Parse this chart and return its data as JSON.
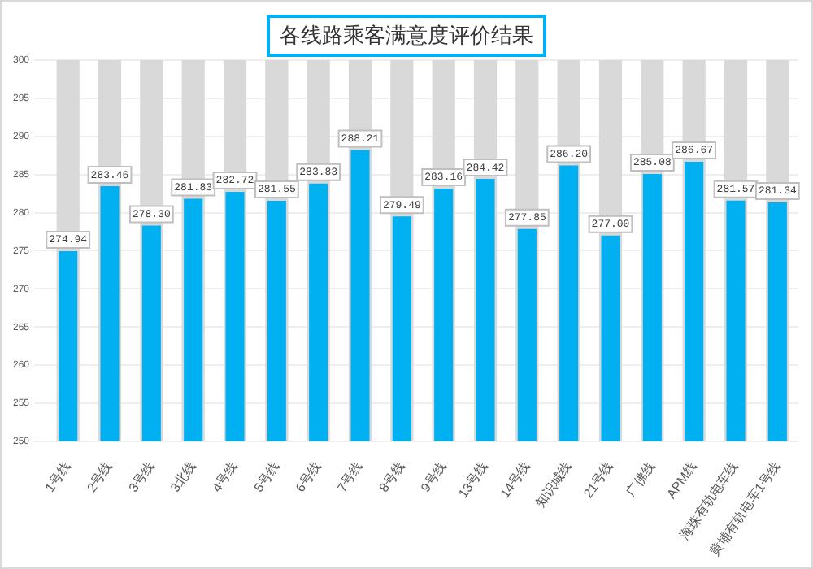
{
  "chart_data": {
    "type": "bar",
    "title": "各线路乘客满意度评价结果",
    "categories": [
      "1号线",
      "2号线",
      "3号线",
      "3北线",
      "4号线",
      "5号线",
      "6号线",
      "7号线",
      "8号线",
      "9号线",
      "13号线",
      "14号线",
      "知识城线",
      "21号线",
      "广佛线",
      "APM线",
      "海珠有轨电车线",
      "黄埔有轨电车1号线"
    ],
    "series": [
      {
        "color": "#d9d9d9",
        "values": [
          300,
          300,
          300,
          300,
          300,
          300,
          300,
          300,
          300,
          300,
          300,
          300,
          300,
          300,
          300,
          300,
          300,
          300
        ]
      },
      {
        "color": "#00b0f0",
        "values": [
          274.94,
          283.46,
          278.3,
          281.83,
          282.72,
          281.55,
          283.83,
          288.21,
          279.49,
          283.16,
          284.42,
          277.85,
          286.2,
          277,
          285.08,
          286.67,
          281.57,
          281.34
        ],
        "value_labels": [
          "274.94",
          "283.46",
          "278.30",
          "281.83",
          "282.72",
          "281.55",
          "283.83",
          "288.21",
          "279.49",
          "283.16",
          "284.42",
          "277.85",
          "286.20",
          "277.00",
          "285.08",
          "286.67",
          "281.57",
          "281.34"
        ]
      }
    ],
    "ylim": [
      250,
      300
    ],
    "yticks": [
      250,
      255,
      260,
      265,
      270,
      275,
      280,
      285,
      290,
      295,
      300
    ],
    "grid": "y",
    "legend": false
  }
}
